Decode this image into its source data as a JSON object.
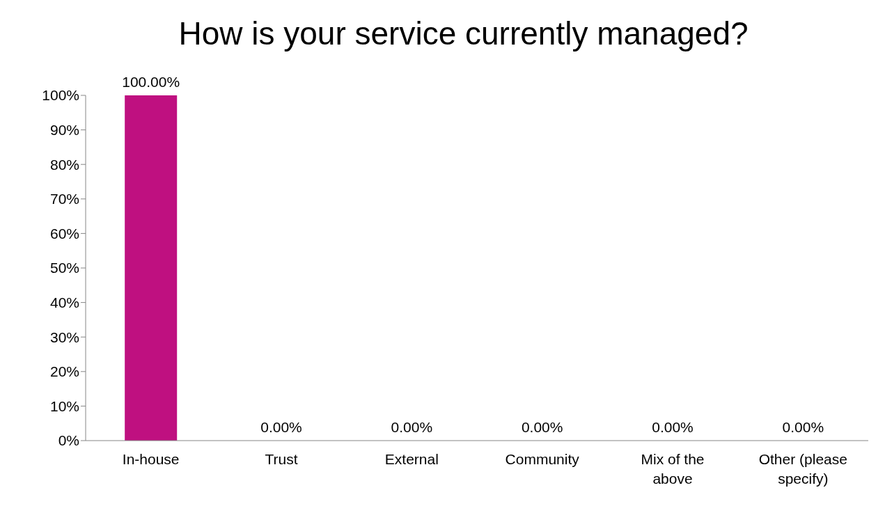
{
  "chart_data": {
    "type": "bar",
    "title": "How is your service currently managed?",
    "categories": [
      "In-house",
      "Trust",
      "External",
      "Community",
      "Mix of the above",
      "Other (please specify)"
    ],
    "values": [
      100,
      0,
      0,
      0,
      0,
      0
    ],
    "value_labels": [
      "100.00%",
      "0.00%",
      "0.00%",
      "0.00%",
      "0.00%",
      "0.00%"
    ],
    "color": "#bf1080",
    "ylim": [
      0,
      100
    ],
    "yticks": [
      {
        "value": 0,
        "label": "0%"
      },
      {
        "value": 10,
        "label": "10%"
      },
      {
        "value": 20,
        "label": "20%"
      },
      {
        "value": 30,
        "label": "30%"
      },
      {
        "value": 40,
        "label": "40%"
      },
      {
        "value": 50,
        "label": "50%"
      },
      {
        "value": 60,
        "label": "60%"
      },
      {
        "value": 70,
        "label": "70%"
      },
      {
        "value": 80,
        "label": "80%"
      },
      {
        "value": 90,
        "label": "90%"
      },
      {
        "value": 100,
        "label": "100%"
      }
    ],
    "grid": false,
    "legend": false
  }
}
